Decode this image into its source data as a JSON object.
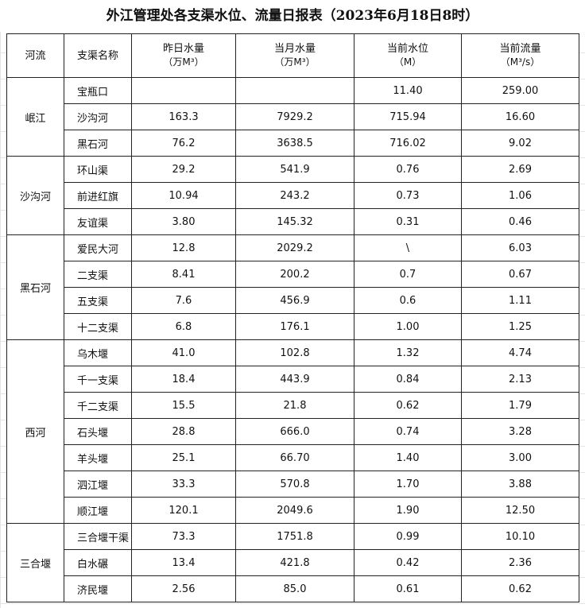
{
  "title": "外江管理处各支渠水位、流量日报表（2023年6月18日8时）",
  "columns": [
    {
      "label": "河流"
    },
    {
      "label": "支渠名称"
    },
    {
      "label": "昨日水量",
      "unit": "（万M³）"
    },
    {
      "label": "当月水量",
      "unit": "（万M³）"
    },
    {
      "label": "当前水位",
      "unit": "（M）"
    },
    {
      "label": "当前流量",
      "unit": "（M³/s）"
    }
  ],
  "groups": [
    {
      "river": "岷江",
      "rows": [
        [
          "宝瓶口",
          null,
          null,
          "11.40",
          "259.00"
        ],
        [
          "沙沟河",
          "163.3",
          "7929.2",
          "715.94",
          "16.60"
        ],
        [
          "黑石河",
          "76.2",
          "3638.5",
          "716.02",
          "9.02"
        ]
      ]
    },
    {
      "river": "沙沟河",
      "rows": [
        [
          "环山渠",
          "29.2",
          "541.9",
          "0.76",
          "2.69"
        ],
        [
          "前进红旗",
          "10.94",
          "243.2",
          "0.73",
          "1.06"
        ],
        [
          "友谊渠",
          "3.80",
          "145.32",
          "0.31",
          "0.46"
        ]
      ]
    },
    {
      "river": "黑石河",
      "rows": [
        [
          "爱民大河",
          "12.8",
          "2029.2",
          "\\",
          "6.03"
        ],
        [
          "二支渠",
          "8.41",
          "200.2",
          "0.7",
          "0.67"
        ],
        [
          "五支渠",
          "7.6",
          "456.9",
          "0.6",
          "1.11"
        ],
        [
          "十二支渠",
          "6.8",
          "176.1",
          "1.00",
          "1.25"
        ]
      ]
    },
    {
      "river": "西河",
      "rows": [
        [
          "乌木堰",
          "41.0",
          "102.8",
          "1.32",
          "4.74"
        ],
        [
          "千一支渠",
          "18.4",
          "443.9",
          "0.84",
          "2.13"
        ],
        [
          "千二支渠",
          "15.5",
          "21.8",
          "0.62",
          "1.79"
        ],
        [
          "石头堰",
          "28.8",
          "666.0",
          "0.74",
          "3.28"
        ],
        [
          "羊头堰",
          "25.1",
          "66.70",
          "1.40",
          "3.00"
        ],
        [
          "泗江堰",
          "33.3",
          "570.8",
          "1.70",
          "3.88"
        ],
        [
          "顺江堰",
          "120.1",
          "2049.6",
          "1.90",
          "12.50"
        ]
      ]
    },
    {
      "river": "三合堰",
      "rows": [
        [
          "三合堰干渠",
          "73.3",
          "1751.8",
          "0.99",
          "10.10"
        ],
        [
          "白水碾",
          "13.4",
          "421.8",
          "0.42",
          "2.36"
        ],
        [
          "济民堰",
          "2.56",
          "85.0",
          "0.61",
          "0.62"
        ]
      ]
    }
  ]
}
